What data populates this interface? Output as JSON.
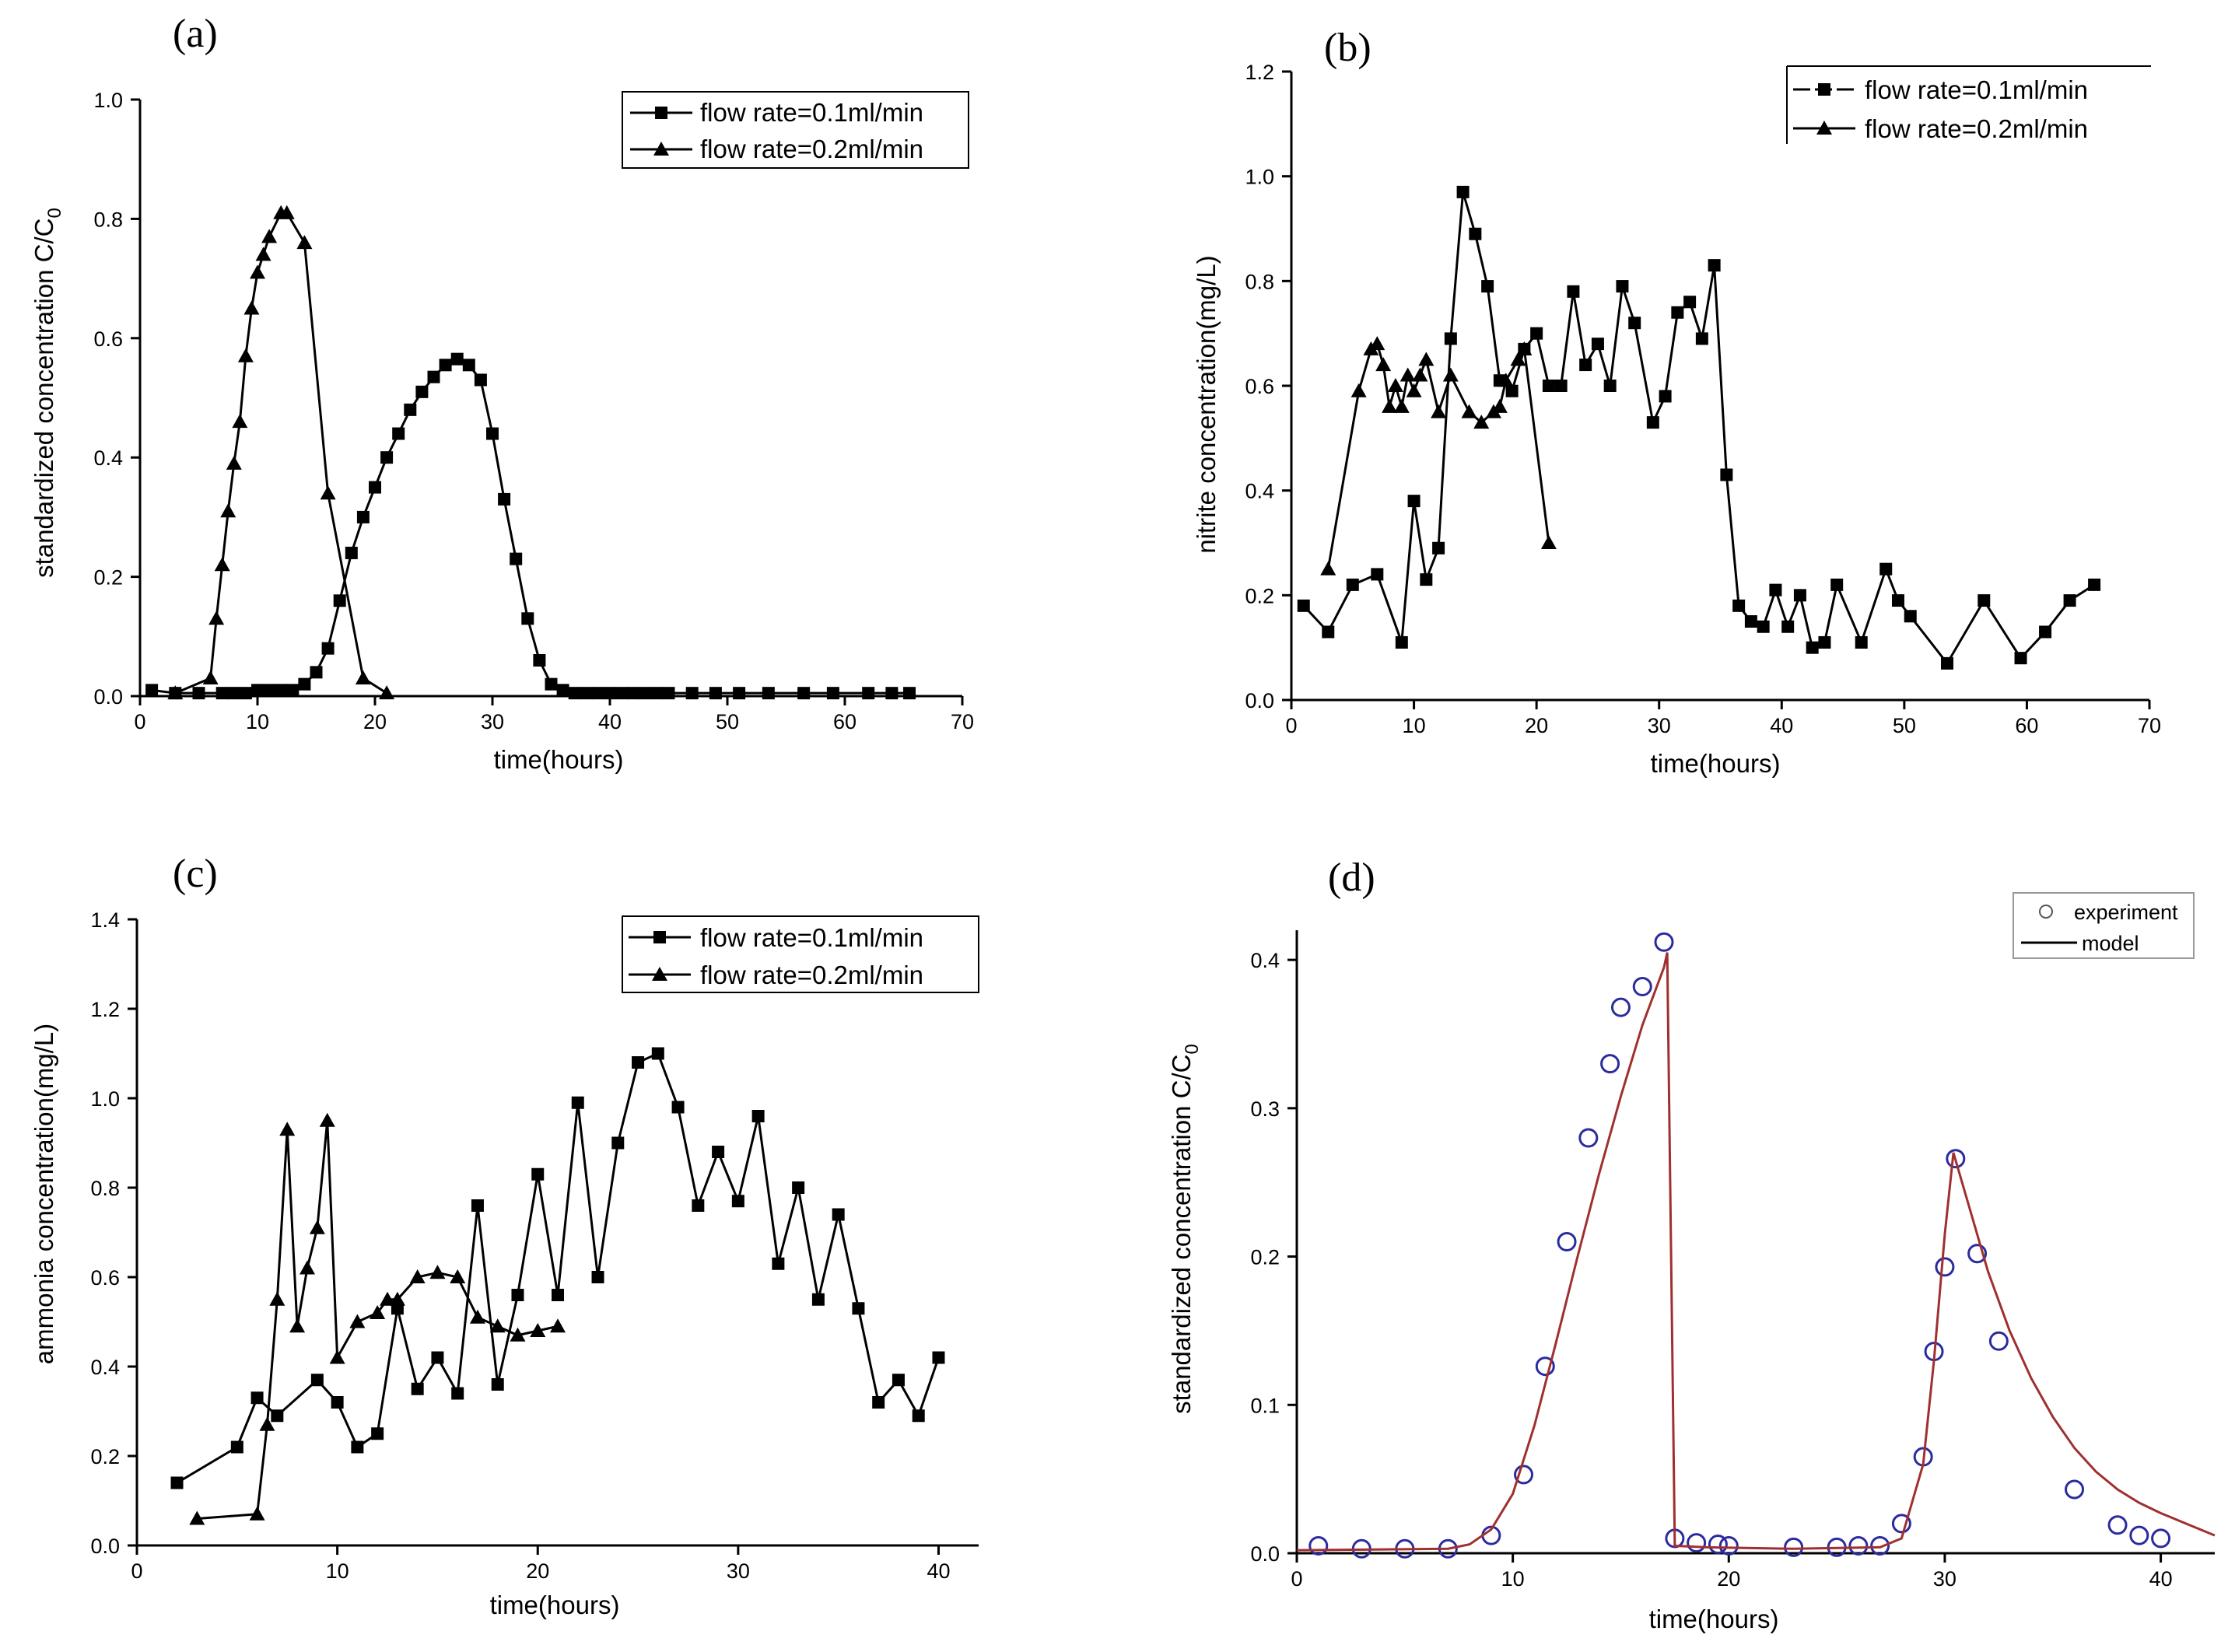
{
  "chart_data": [
    {
      "id": "a",
      "panel_label": "(a)",
      "type": "line",
      "xlabel": "time(hours)",
      "ylabel": "standardized concentration C/C",
      "ylabel_sub": "0",
      "xlim": [
        0,
        70
      ],
      "ylim": [
        0,
        1.0
      ],
      "xticks": [
        0,
        10,
        20,
        30,
        40,
        50,
        60,
        70
      ],
      "yticks": [
        0.0,
        0.2,
        0.4,
        0.6,
        0.8,
        1.0
      ],
      "ytick_decimals": 1,
      "legend_position": "top-right",
      "series": [
        {
          "name": "flow rate=0.1ml/min",
          "marker": "square",
          "color": "#000000",
          "x": [
            1,
            3,
            5,
            7,
            8,
            9,
            10,
            11,
            12,
            13,
            14,
            15,
            16,
            17,
            18,
            19,
            20,
            21,
            22,
            23,
            24,
            25,
            26,
            27,
            28,
            29,
            30,
            31,
            32,
            33,
            34,
            35,
            36,
            37,
            38,
            39,
            40,
            41,
            42,
            43,
            44,
            45,
            47,
            49,
            51,
            53.5,
            56.5,
            59,
            62,
            64,
            65.5
          ],
          "y": [
            0.01,
            0.005,
            0.005,
            0.005,
            0.005,
            0.005,
            0.01,
            0.01,
            0.01,
            0.01,
            0.02,
            0.04,
            0.08,
            0.16,
            0.24,
            0.3,
            0.35,
            0.4,
            0.44,
            0.48,
            0.51,
            0.535,
            0.555,
            0.565,
            0.555,
            0.53,
            0.44,
            0.33,
            0.23,
            0.13,
            0.06,
            0.02,
            0.01,
            0.005,
            0.005,
            0.005,
            0.005,
            0.005,
            0.005,
            0.005,
            0.005,
            0.005,
            0.005,
            0.005,
            0.005,
            0.005,
            0.005,
            0.005,
            0.005,
            0.005,
            0.005
          ]
        },
        {
          "name": "flow rate=0.2ml/min",
          "marker": "triangle",
          "color": "#000000",
          "x": [
            3,
            6,
            6.5,
            7,
            7.5,
            8,
            8.5,
            9,
            9.5,
            10,
            10.5,
            11,
            12,
            12.5,
            14,
            16,
            19,
            21
          ],
          "y": [
            0.005,
            0.03,
            0.13,
            0.22,
            0.31,
            0.39,
            0.46,
            0.57,
            0.65,
            0.71,
            0.74,
            0.77,
            0.81,
            0.81,
            0.76,
            0.34,
            0.03,
            0.005
          ]
        }
      ]
    },
    {
      "id": "b",
      "panel_label": "(b)",
      "type": "line",
      "xlabel": "time(hours)",
      "ylabel": "nitrite concentration(mg/L)",
      "xlim": [
        0,
        70
      ],
      "ylim": [
        0,
        1.2
      ],
      "xticks": [
        0,
        10,
        20,
        30,
        40,
        50,
        60,
        70
      ],
      "yticks": [
        0.0,
        0.2,
        0.4,
        0.6,
        0.8,
        1.0,
        1.2
      ],
      "ytick_decimals": 1,
      "legend_position": "top-right",
      "series": [
        {
          "name": "flow rate=0.1ml/min",
          "marker": "square",
          "color": "#000000",
          "x": [
            1,
            3,
            5,
            7,
            9,
            10,
            11,
            12,
            13,
            14,
            15,
            16,
            17,
            18,
            19,
            20,
            21,
            22,
            23,
            24,
            25,
            26,
            27,
            28,
            29.5,
            30.5,
            31.5,
            32.5,
            33.5,
            34.5,
            35.5,
            36.5,
            37.5,
            38.5,
            39.5,
            40.5,
            41.5,
            42.5,
            43.5,
            44.5,
            46.5,
            48.5,
            49.5,
            50.5,
            53.5,
            56.5,
            59.5,
            61.5,
            63.5,
            65.5
          ],
          "y": [
            0.18,
            0.13,
            0.22,
            0.24,
            0.11,
            0.38,
            0.23,
            0.29,
            0.69,
            0.97,
            0.89,
            0.79,
            0.61,
            0.59,
            0.67,
            0.7,
            0.6,
            0.6,
            0.78,
            0.64,
            0.68,
            0.6,
            0.79,
            0.72,
            0.53,
            0.58,
            0.74,
            0.76,
            0.69,
            0.83,
            0.43,
            0.18,
            0.15,
            0.14,
            0.21,
            0.14,
            0.2,
            0.1,
            0.11,
            0.22,
            0.11,
            0.25,
            0.19,
            0.16,
            0.07,
            0.19,
            0.08,
            0.13,
            0.19,
            0.22
          ]
        },
        {
          "name": "flow rate=0.2ml/min",
          "marker": "triangle",
          "color": "#000000",
          "x": [
            3,
            5.5,
            6.5,
            7,
            7.5,
            8,
            8.5,
            9,
            9.5,
            10,
            10.5,
            11,
            12,
            13,
            14.5,
            15.5,
            16.5,
            17,
            17.5,
            18.5,
            19,
            21
          ],
          "y": [
            0.25,
            0.59,
            0.67,
            0.68,
            0.64,
            0.56,
            0.6,
            0.56,
            0.62,
            0.59,
            0.62,
            0.65,
            0.55,
            0.62,
            0.55,
            0.53,
            0.55,
            0.56,
            0.61,
            0.65,
            0.67,
            0.3
          ]
        }
      ]
    },
    {
      "id": "c",
      "panel_label": "(c)",
      "type": "line",
      "xlabel": "time(hours)",
      "ylabel": "ammonia concentration(mg/L)",
      "xlim": [
        0,
        42
      ],
      "ylim": [
        0,
        1.4
      ],
      "xticks": [
        0,
        10,
        20,
        30,
        40
      ],
      "yticks": [
        0.0,
        0.2,
        0.4,
        0.6,
        0.8,
        1.0,
        1.2,
        1.4
      ],
      "ytick_decimals": 1,
      "legend_position": "top-right",
      "series": [
        {
          "name": "flow rate=0.1ml/min",
          "marker": "square",
          "color": "#000000",
          "x": [
            2,
            5,
            6,
            7,
            9,
            10,
            11,
            12,
            13,
            14,
            15,
            16,
            17,
            18,
            19,
            20,
            21,
            22,
            23,
            24,
            25,
            26,
            27,
            28,
            29,
            30,
            31,
            32,
            33,
            34,
            35,
            36,
            37,
            38,
            39,
            40
          ],
          "y": [
            0.14,
            0.22,
            0.33,
            0.29,
            0.37,
            0.32,
            0.22,
            0.25,
            0.53,
            0.35,
            0.42,
            0.34,
            0.76,
            0.36,
            0.56,
            0.83,
            0.56,
            0.99,
            0.6,
            0.9,
            1.08,
            1.1,
            0.98,
            0.76,
            0.88,
            0.77,
            0.96,
            0.63,
            0.8,
            0.55,
            0.74,
            0.53,
            0.32,
            0.37,
            0.29,
            0.42
          ]
        },
        {
          "name": "flow rate=0.2ml/min",
          "marker": "triangle",
          "color": "#000000",
          "x": [
            3,
            6,
            6.5,
            7,
            7.5,
            8,
            8.5,
            9,
            9.5,
            10,
            11,
            12,
            12.5,
            13,
            14,
            15,
            16,
            17,
            18,
            19,
            20,
            21
          ],
          "y": [
            0.06,
            0.07,
            0.27,
            0.55,
            0.93,
            0.49,
            0.62,
            0.71,
            0.95,
            0.42,
            0.5,
            0.52,
            0.55,
            0.55,
            0.6,
            0.61,
            0.6,
            0.51,
            0.49,
            0.47,
            0.48,
            0.49
          ]
        }
      ]
    },
    {
      "id": "d",
      "panel_label": "(d)",
      "type": "scatter",
      "xlabel": "time(hours)",
      "ylabel": "standardized concentration C/C",
      "ylabel_sub": "0",
      "xlim": [
        0,
        42.5
      ],
      "ylim": [
        0,
        0.42
      ],
      "xticks": [
        0,
        10,
        20,
        30,
        40
      ],
      "yticks": [
        0.0,
        0.1,
        0.2,
        0.3,
        0.4
      ],
      "ytick_decimals": 1,
      "legend_position": "top-right",
      "series": [
        {
          "name": "experiment",
          "marker": "circle-open",
          "color": "#2b2b9e",
          "x": [
            1,
            3,
            5,
            7,
            9,
            10.5,
            11.5,
            12.5,
            13.5,
            14.5,
            15,
            16,
            17,
            17.5,
            18.5,
            19.5,
            20,
            23,
            25,
            26,
            27,
            28,
            29,
            29.5,
            30,
            30.5,
            31.5,
            32.5,
            36,
            38,
            39,
            40
          ],
          "y": [
            0.005,
            0.003,
            0.003,
            0.003,
            0.012,
            0.053,
            0.126,
            0.21,
            0.28,
            0.33,
            0.368,
            0.382,
            0.412,
            0.01,
            0.007,
            0.006,
            0.005,
            0.004,
            0.004,
            0.005,
            0.005,
            0.02,
            0.065,
            0.136,
            0.193,
            0.266,
            0.202,
            0.143,
            0.043,
            0.019,
            0.012,
            0.01
          ]
        },
        {
          "name": "model",
          "marker": "line",
          "color": "#a03030",
          "x": [
            0,
            7,
            8,
            9,
            10,
            11,
            12,
            13,
            14,
            15,
            16,
            17,
            17.15,
            17.5,
            19,
            23,
            27,
            28,
            29,
            29.5,
            30,
            30.4,
            31,
            32,
            33,
            34,
            35,
            36,
            37,
            38,
            39,
            40,
            41,
            42.5
          ],
          "y": [
            0.002,
            0.003,
            0.006,
            0.016,
            0.04,
            0.086,
            0.142,
            0.2,
            0.256,
            0.308,
            0.356,
            0.395,
            0.405,
            0.005,
            0.004,
            0.003,
            0.004,
            0.01,
            0.06,
            0.13,
            0.215,
            0.27,
            0.24,
            0.19,
            0.15,
            0.118,
            0.092,
            0.071,
            0.055,
            0.043,
            0.034,
            0.027,
            0.021,
            0.012
          ]
        }
      ]
    }
  ]
}
